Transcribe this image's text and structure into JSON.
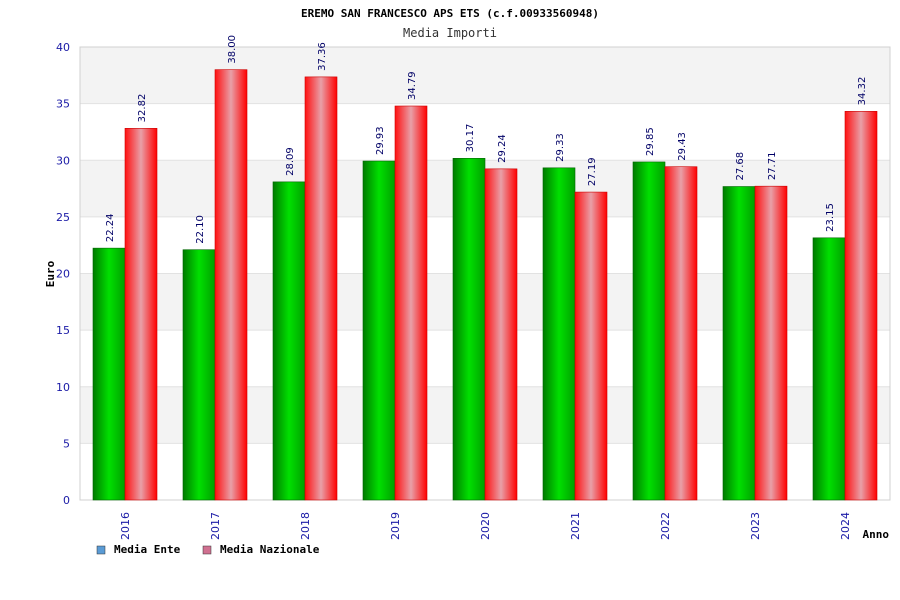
{
  "chart_data": {
    "type": "bar",
    "title": "EREMO SAN FRANCESCO APS ETS (c.f.00933560948)",
    "subtitle": "Media Importi",
    "xlabel": "Anno",
    "ylabel": "Euro",
    "ylim": [
      0,
      40
    ],
    "yticks": [
      0,
      5,
      10,
      15,
      20,
      25,
      30,
      35,
      40
    ],
    "grid": true,
    "legend_position": "bottom-left",
    "categories": [
      "2016",
      "2017",
      "2018",
      "2019",
      "2020",
      "2021",
      "2022",
      "2023",
      "2024"
    ],
    "series": [
      {
        "name": "Media Ente",
        "values": [
          22.24,
          22.1,
          28.09,
          29.93,
          30.17,
          29.33,
          29.85,
          27.68,
          23.15
        ],
        "labels": [
          "22.24",
          "22.10",
          "28.09",
          "29.93",
          "30.17",
          "29.33",
          "29.85",
          "27.68",
          "23.15"
        ],
        "color": "#00c000",
        "legend_color": "#5a9bd5"
      },
      {
        "name": "Media Nazionale",
        "values": [
          32.82,
          38.0,
          37.36,
          34.79,
          29.24,
          27.19,
          29.43,
          27.71,
          34.32
        ],
        "labels": [
          "32.82",
          "38.00",
          "37.36",
          "34.79",
          "29.24",
          "27.19",
          "29.43",
          "27.71",
          "34.32"
        ],
        "color": "#ff0000",
        "legend_color": "#d07090"
      }
    ]
  }
}
